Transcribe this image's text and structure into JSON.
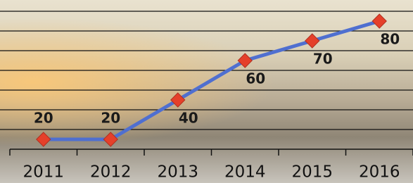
{
  "chart_data": {
    "type": "line",
    "categories": [
      "2011",
      "2012",
      "2013",
      "2014",
      "2015",
      "2016"
    ],
    "values": [
      20,
      20,
      40,
      60,
      70,
      80
    ],
    "color": "#4f6fd0",
    "marker_color": "#e5402a",
    "ylim": [
      15,
      85
    ],
    "yticks": [
      15,
      25,
      35,
      45,
      55,
      65,
      75,
      85
    ],
    "grid": true
  }
}
